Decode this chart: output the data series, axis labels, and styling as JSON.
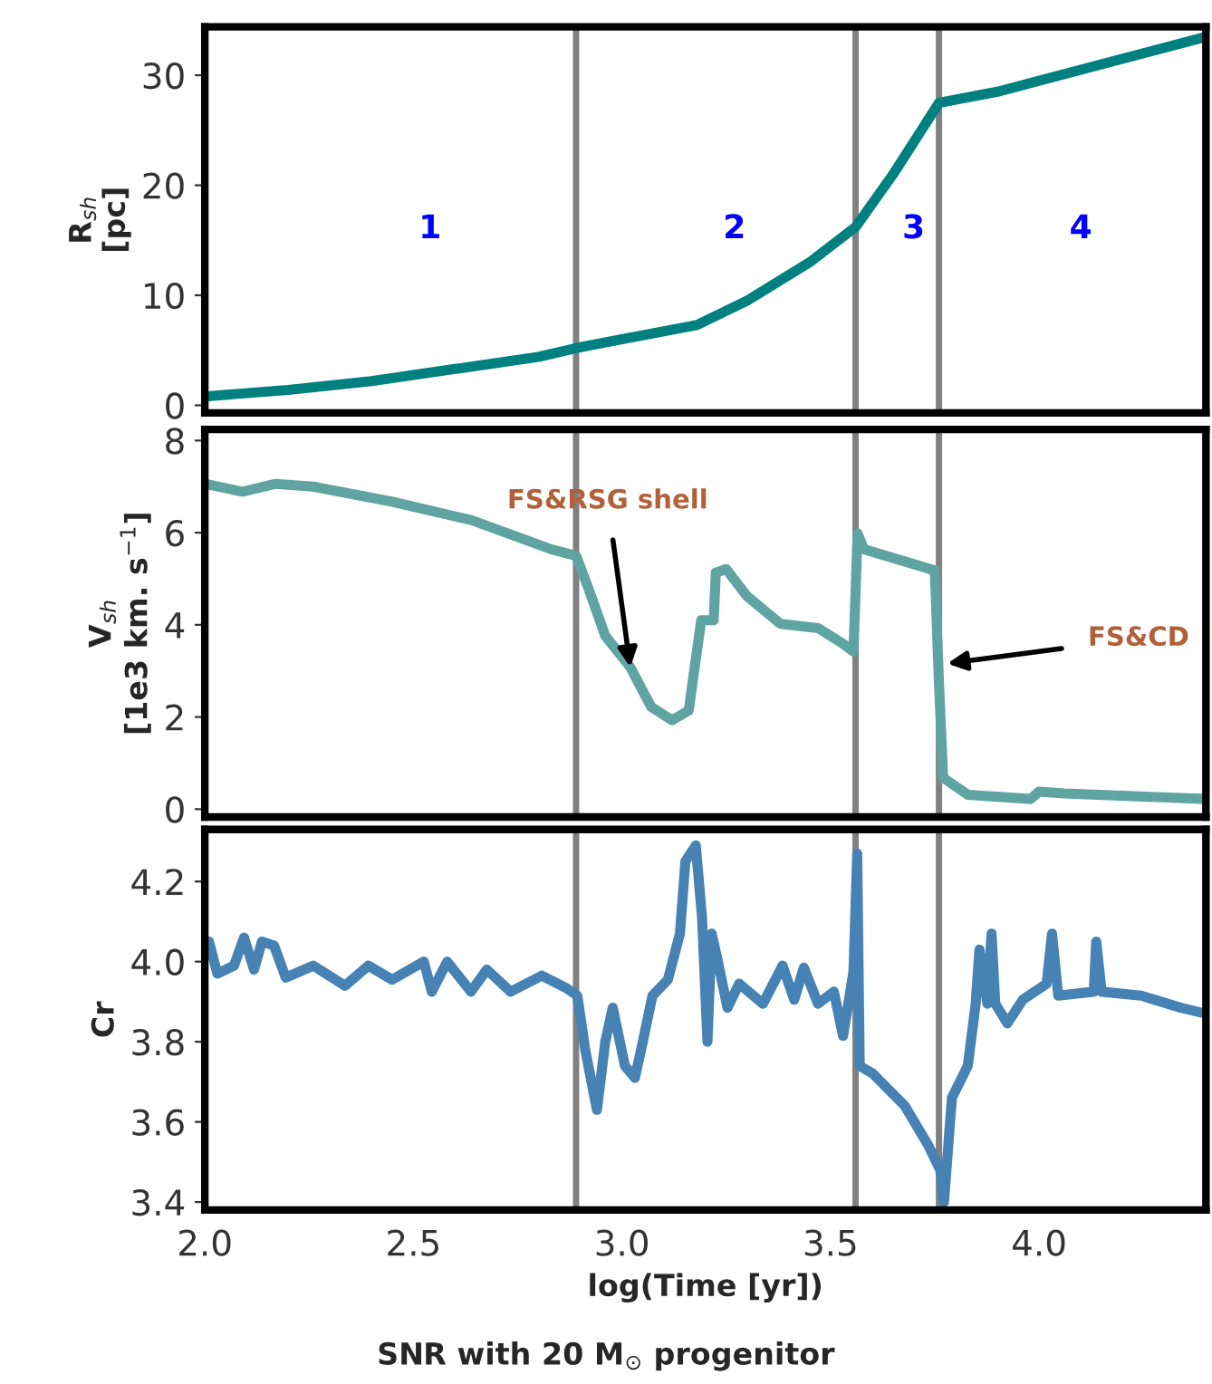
{
  "chart_data": [
    {
      "type": "line",
      "ylabel": "R$_{sh}$\n[pc]",
      "xlim": [
        2.0,
        4.4
      ],
      "ylim": [
        -0.7,
        34.4
      ],
      "yticks": [
        0,
        10,
        20,
        30
      ],
      "tick_labels": "y",
      "series": [
        {
          "color": "#00807f",
          "x": [
            2.0,
            2.2,
            2.4,
            2.6,
            2.8,
            2.89,
            3.0,
            3.18,
            3.3,
            3.45,
            3.56,
            3.65,
            3.76,
            3.9,
            4.0,
            4.2,
            4.4
          ],
          "values": [
            0.8,
            1.4,
            2.2,
            3.3,
            4.4,
            5.2,
            6.0,
            7.3,
            9.5,
            13,
            16.2,
            21,
            27.5,
            28.5,
            29.5,
            31.5,
            33.5
          ]
        }
      ],
      "ref_lines": [
        {
          "axis": "x",
          "value": 2.89,
          "color": "#808080"
        },
        {
          "axis": "x",
          "value": 3.56,
          "color": "#808080"
        },
        {
          "axis": "x",
          "value": 3.76,
          "color": "#808080"
        }
      ],
      "annotations": [
        "1",
        "2",
        "3",
        "4"
      ]
    },
    {
      "type": "line",
      "ylabel": "V$_{sh}$\n[1e3 km. s$^{−1}$]",
      "xlim": [
        2.0,
        4.4
      ],
      "ylim": [
        -0.17,
        8.24
      ],
      "yticks": [
        0,
        2,
        4,
        6,
        8
      ],
      "tick_labels": "y",
      "series": [
        {
          "color": "#5fa3a3",
          "x": [
            2.0,
            2.09,
            2.17,
            2.26,
            2.45,
            2.64,
            2.83,
            2.89,
            2.92,
            2.96,
            3.02,
            3.07,
            3.12,
            3.16,
            3.19,
            3.22,
            3.225,
            3.25,
            3.3,
            3.38,
            3.47,
            3.53,
            3.555,
            3.565,
            3.58,
            3.75,
            3.76,
            3.77,
            3.83,
            3.98,
            4.0,
            4.06,
            4.4
          ],
          "values": [
            7.06,
            6.89,
            7.06,
            7.0,
            6.67,
            6.27,
            5.64,
            5.5,
            4.78,
            3.76,
            3.08,
            2.22,
            1.93,
            2.14,
            4.1,
            4.1,
            5.13,
            5.21,
            4.62,
            4.02,
            3.93,
            3.59,
            3.42,
            5.98,
            5.64,
            5.18,
            2.74,
            0.68,
            0.31,
            0.22,
            0.38,
            0.34,
            0.22
          ]
        }
      ],
      "ref_lines": [
        {
          "axis": "x",
          "value": 2.89,
          "color": "#808080"
        },
        {
          "axis": "x",
          "value": 3.56,
          "color": "#808080"
        },
        {
          "axis": "x",
          "value": 3.76,
          "color": "#808080"
        }
      ],
      "annotations": [
        {
          "text": "FS&RSG shell",
          "x": 3.02,
          "y": 3.08
        },
        {
          "text": "FS&CD",
          "x": 3.78,
          "y": 3.16
        }
      ]
    },
    {
      "type": "line",
      "ylabel": "Cr",
      "xlabel": "log(Time [yr])",
      "xlim": [
        2.0,
        4.4
      ],
      "ylim": [
        3.38,
        4.33
      ],
      "yticks": [
        3.4,
        3.6,
        3.8,
        {
          "value": 4.0,
          "label": "4.0"
        },
        4.2
      ],
      "xticks": [
        {
          "value": 2.0,
          "label": "2.0"
        },
        2.5,
        {
          "value": 3.0,
          "label": "3.0"
        },
        3.5,
        {
          "value": 4.0,
          "label": "4.0"
        }
      ],
      "series": [
        {
          "color": "#4682b4",
          "x": [
            2.01,
            2.03,
            2.07,
            2.094,
            2.118,
            2.137,
            2.166,
            2.194,
            2.26,
            2.336,
            2.392,
            2.449,
            2.525,
            2.544,
            2.581,
            2.638,
            2.676,
            2.733,
            2.808,
            2.865,
            2.893,
            2.912,
            2.94,
            2.96,
            2.978,
            3.007,
            3.031,
            3.05,
            3.073,
            3.11,
            3.139,
            3.152,
            3.177,
            3.192,
            3.205,
            3.215,
            3.228,
            3.253,
            3.281,
            3.338,
            3.385,
            3.413,
            3.436,
            3.47,
            3.508,
            3.53,
            3.555,
            3.564,
            3.57,
            3.602,
            3.678,
            3.735,
            3.763,
            3.772,
            3.791,
            3.829,
            3.848,
            3.857,
            3.876,
            3.886,
            3.895,
            3.924,
            3.961,
            4.018,
            4.031,
            4.046,
            4.131,
            4.137,
            4.15,
            4.245,
            4.34,
            4.4
          ],
          "values": [
            4.05,
            3.97,
            3.99,
            4.06,
            3.98,
            4.05,
            4.04,
            3.96,
            3.99,
            3.94,
            3.99,
            3.955,
            4.0,
            3.925,
            4.0,
            3.925,
            3.98,
            3.925,
            3.965,
            3.935,
            3.915,
            3.78,
            3.63,
            3.8,
            3.885,
            3.74,
            3.71,
            3.8,
            3.915,
            3.955,
            4.07,
            4.25,
            4.29,
            4.11,
            3.8,
            4.07,
            4.01,
            3.885,
            3.945,
            3.895,
            3.99,
            3.905,
            3.985,
            3.895,
            3.925,
            3.815,
            3.975,
            4.27,
            3.74,
            3.72,
            3.64,
            3.54,
            3.48,
            3.4,
            3.66,
            3.74,
            3.895,
            4.03,
            3.895,
            4.07,
            3.895,
            3.846,
            3.905,
            3.945,
            4.07,
            3.915,
            3.925,
            4.05,
            3.925,
            3.915,
            3.885,
            3.87
          ]
        }
      ],
      "ref_lines": [
        {
          "axis": "x",
          "value": 2.89,
          "color": "#808080"
        },
        {
          "axis": "x",
          "value": 3.56,
          "color": "#808080"
        },
        {
          "axis": "x",
          "value": 3.76,
          "color": "#808080"
        }
      ],
      "annotations": [
        "SNR with 20 M$_{⊙}$ progenitor"
      ]
    }
  ]
}
